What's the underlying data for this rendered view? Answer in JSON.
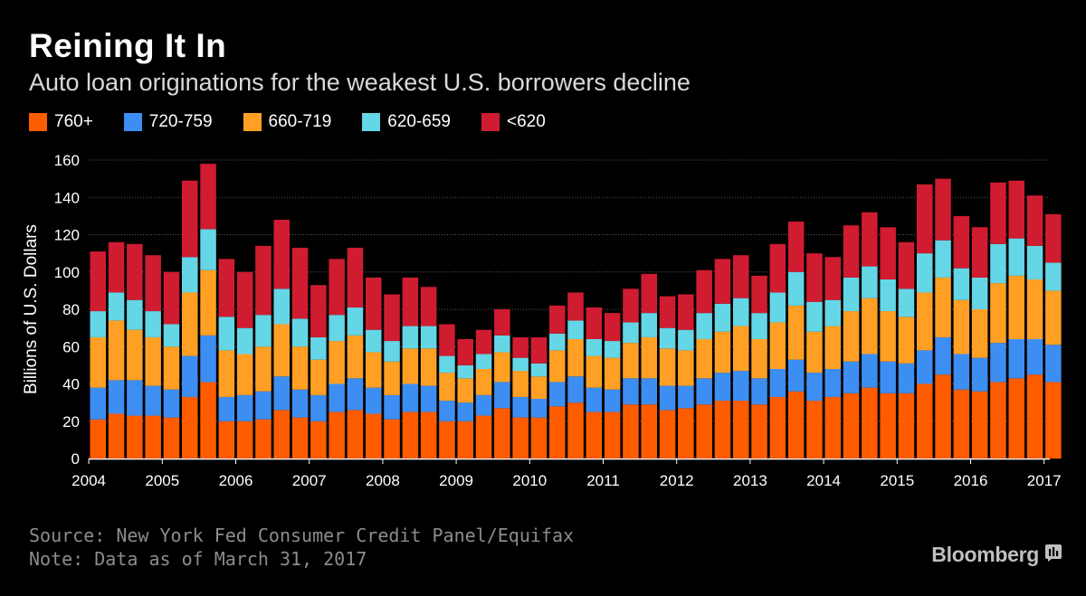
{
  "header": {
    "title": "Reining It In",
    "subtitle": "Auto loan originations for the weakest U.S. borrowers decline"
  },
  "footer": {
    "source": "Source: New York Fed Consumer Credit Panel/Equifax",
    "note": "Note: Data as of March 31, 2017",
    "brand": "Bloomberg"
  },
  "chart_data": {
    "type": "bar",
    "stacked": true,
    "title": "Reining It In",
    "subtitle": "Auto loan originations for the weakest U.S. borrowers decline",
    "ylabel": "Billions of U.S. Dollars",
    "xlabel": "",
    "ylim": [
      0,
      160
    ],
    "yticks": [
      0,
      20,
      40,
      60,
      80,
      100,
      120,
      140,
      160
    ],
    "xticks": [
      "2004",
      "2005",
      "2006",
      "2007",
      "2008",
      "2009",
      "2010",
      "2011",
      "2012",
      "2013",
      "2014",
      "2015",
      "2016",
      "2017"
    ],
    "grid": true,
    "legend_position": "top-left",
    "categories": [
      "2004 Q1",
      "2004 Q2",
      "2004 Q3",
      "2004 Q4",
      "2005 Q1",
      "2005 Q2",
      "2005 Q3",
      "2005 Q4",
      "2006 Q1",
      "2006 Q2",
      "2006 Q3",
      "2006 Q4",
      "2007 Q1",
      "2007 Q2",
      "2007 Q3",
      "2007 Q4",
      "2008 Q1",
      "2008 Q2",
      "2008 Q3",
      "2008 Q4",
      "2009 Q1",
      "2009 Q2",
      "2009 Q3",
      "2009 Q4",
      "2010 Q1",
      "2010 Q2",
      "2010 Q3",
      "2010 Q4",
      "2011 Q1",
      "2011 Q2",
      "2011 Q3",
      "2011 Q4",
      "2012 Q1",
      "2012 Q2",
      "2012 Q3",
      "2012 Q4",
      "2013 Q1",
      "2013 Q2",
      "2013 Q3",
      "2013 Q4",
      "2014 Q1",
      "2014 Q2",
      "2014 Q3",
      "2014 Q4",
      "2015 Q1",
      "2015 Q2",
      "2015 Q3",
      "2015 Q4",
      "2016 Q1",
      "2016 Q2",
      "2016 Q3",
      "2016 Q4",
      "2017 Q1"
    ],
    "series": [
      {
        "name": "760+",
        "color": "#ff5c00",
        "values": [
          21,
          24,
          23,
          23,
          22,
          33,
          41,
          20,
          20,
          21,
          26,
          22,
          20,
          25,
          26,
          24,
          21,
          25,
          25,
          20,
          20,
          23,
          27,
          22,
          22,
          28,
          30,
          25,
          25,
          29,
          29,
          26,
          27,
          29,
          31,
          31,
          29,
          33,
          36,
          31,
          33,
          35,
          38,
          35,
          35,
          40,
          45,
          37,
          36,
          41,
          43,
          45,
          41
        ]
      },
      {
        "name": "720-759",
        "color": "#3d8ef2",
        "values": [
          17,
          18,
          19,
          16,
          15,
          22,
          25,
          13,
          14,
          15,
          18,
          15,
          14,
          15,
          17,
          14,
          13,
          15,
          14,
          11,
          10,
          11,
          14,
          11,
          10,
          13,
          14,
          13,
          12,
          14,
          14,
          13,
          12,
          14,
          15,
          16,
          14,
          15,
          17,
          15,
          15,
          17,
          18,
          17,
          16,
          18,
          20,
          19,
          18,
          21,
          21,
          19,
          20
        ]
      },
      {
        "name": "660-719",
        "color": "#ffa024",
        "values": [
          27,
          32,
          27,
          26,
          23,
          34,
          35,
          25,
          22,
          24,
          28,
          23,
          19,
          23,
          23,
          19,
          18,
          19,
          20,
          15,
          13,
          14,
          16,
          14,
          12,
          17,
          20,
          17,
          17,
          19,
          22,
          20,
          19,
          21,
          22,
          24,
          21,
          25,
          29,
          22,
          23,
          27,
          30,
          27,
          25,
          31,
          32,
          29,
          26,
          32,
          34,
          32,
          29
        ]
      },
      {
        "name": "620-659",
        "color": "#65d6e6",
        "values": [
          14,
          15,
          16,
          14,
          12,
          19,
          22,
          18,
          14,
          17,
          19,
          15,
          12,
          14,
          15,
          12,
          11,
          12,
          12,
          9,
          7,
          8,
          9,
          7,
          7,
          9,
          10,
          9,
          9,
          11,
          13,
          11,
          11,
          14,
          15,
          15,
          14,
          16,
          18,
          16,
          14,
          18,
          17,
          17,
          15,
          21,
          20,
          17,
          17,
          21,
          20,
          18,
          15
        ]
      },
      {
        "name": "<620",
        "color": "#d01c30",
        "values": [
          32,
          27,
          30,
          30,
          28,
          41,
          35,
          31,
          30,
          37,
          37,
          38,
          28,
          30,
          32,
          28,
          25,
          26,
          21,
          17,
          14,
          13,
          14,
          11,
          14,
          15,
          15,
          17,
          15,
          18,
          21,
          17,
          19,
          23,
          24,
          23,
          20,
          26,
          27,
          26,
          23,
          28,
          29,
          28,
          25,
          37,
          33,
          28,
          27,
          33,
          31,
          27,
          26
        ]
      }
    ]
  }
}
